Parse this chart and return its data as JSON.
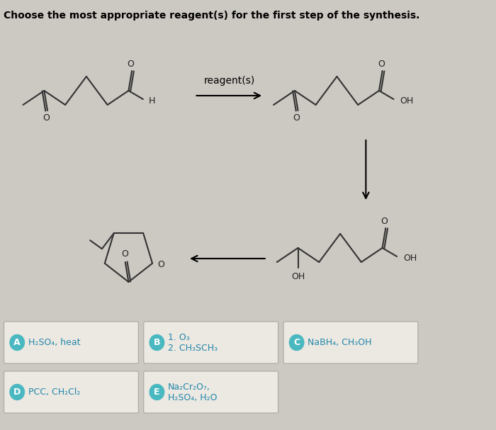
{
  "title": "Choose the most appropriate reagent(s) for the first step of the synthesis.",
  "bg_color": "#ccc8c2",
  "box_color": "#e6e2dc",
  "box_border": "#b8b4ae",
  "answer_circle_color": "#4ab8c0",
  "reagent_label": "reagent(s)",
  "choices": {
    "A": "H₂SO₄, heat",
    "B": "1. O₃\n2. CH₃SCH₃",
    "C": "NaBH₄, CH₃OH",
    "D": "PCC, CH₂Cl₂",
    "E": "Na₂Cr₂O₇,\nH₂SO₄, H₂O"
  }
}
